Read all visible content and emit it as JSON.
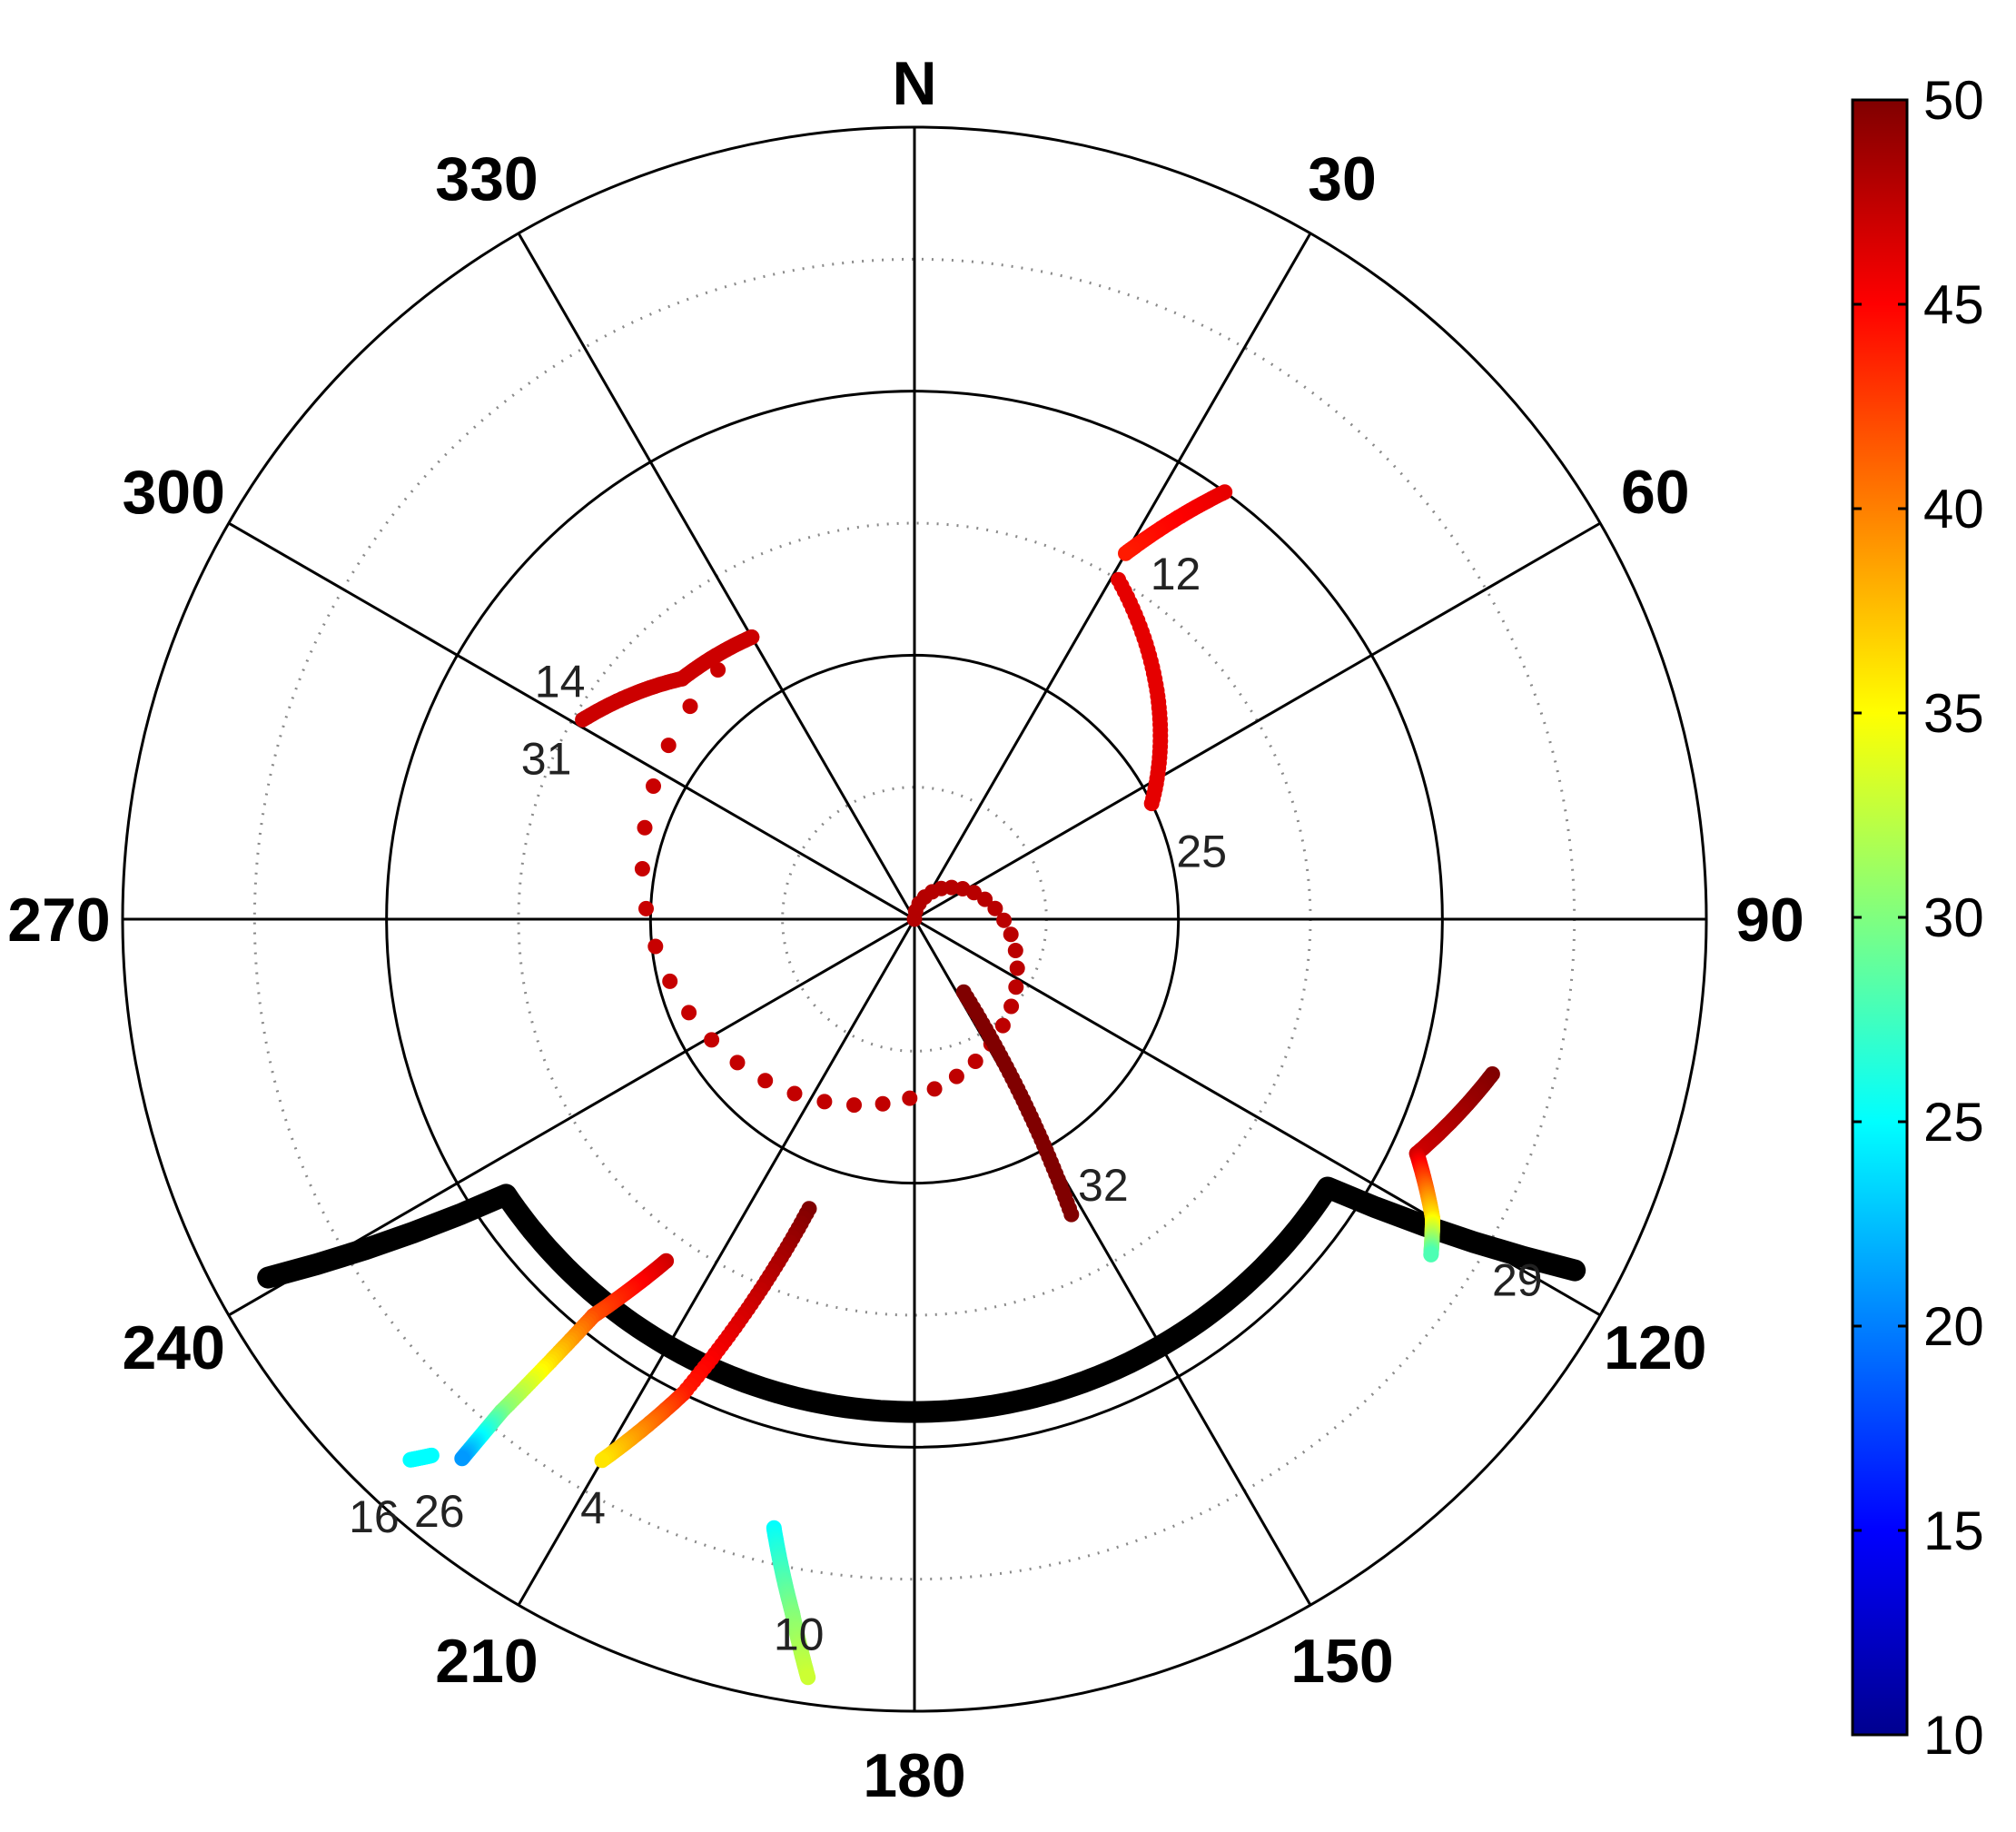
{
  "chart_data": {
    "type": "scatter",
    "subtype": "polar-skyplot",
    "title": "",
    "north_label": "N",
    "angle_labels": [
      "30",
      "60",
      "90",
      "120",
      "150",
      "180",
      "210",
      "240",
      "270",
      "300",
      "330"
    ],
    "angle_ticks_deg": [
      30,
      60,
      90,
      120,
      150,
      180,
      210,
      240,
      270,
      300,
      330
    ],
    "rings_elevation_deg": [
      0,
      30,
      60
    ],
    "dotted_rings_elevation_deg": [
      15,
      45,
      75
    ],
    "elevation_range": [
      0,
      90
    ],
    "direction": "clockwise from north",
    "grid": true,
    "colorbar": {
      "min": 10,
      "max": 50,
      "tick_labels": [
        "10",
        "15",
        "20",
        "25",
        "30",
        "35",
        "40",
        "45",
        "50"
      ],
      "tick_values": [
        10,
        15,
        20,
        25,
        30,
        35,
        40,
        45,
        50
      ],
      "colormap": "jet",
      "placement": "right"
    },
    "mask": {
      "color": "#000000",
      "points": [
        [
          118,
          5
        ],
        [
          123,
          34
        ],
        [
          236,
          34
        ],
        [
          241,
          6
        ]
      ]
    },
    "series": [
      {
        "label": "12",
        "points": [
          [
            36,
            30,
            46
          ],
          [
            30,
            42,
            44
          ]
        ]
      },
      {
        "label": "25",
        "points": [
          [
            31,
            45,
            46
          ],
          [
            64,
            60,
            46
          ]
        ]
      },
      {
        "label": "14",
        "points": [
          [
            0,
            90,
            48
          ],
          [
            330,
            53,
            47
          ],
          [
            316,
            52,
            47
          ],
          [
            301,
            46,
            47
          ]
        ]
      },
      {
        "label": "31",
        "points": [
          [
            301,
            46,
            47
          ]
        ]
      },
      {
        "label": "32",
        "points": [
          [
            146,
            80,
            50
          ],
          [
            152,
            52,
            50
          ]
        ]
      },
      {
        "label": "29",
        "points": [
          [
            105,
            22,
            50
          ],
          [
            115,
            27,
            47
          ],
          [
            120,
            22,
            36
          ],
          [
            123,
            20,
            28
          ]
        ]
      },
      {
        "label": "4",
        "points": [
          [
            200,
            55,
            50
          ],
          [
            206,
            30,
            44
          ],
          [
            210,
            19,
            36
          ]
        ]
      },
      {
        "label": "26",
        "points": [
          [
            216,
            42,
            47
          ],
          [
            219,
            32,
            42
          ],
          [
            220,
            17,
            30
          ],
          [
            220,
            10,
            21
          ]
        ]
      },
      {
        "label": "10",
        "points": [
          [
            193,
            19,
            25
          ],
          [
            190,
            10,
            30
          ],
          [
            188,
            3,
            33
          ]
        ]
      },
      {
        "label": "16",
        "points": [
          [
            222,
            8,
            25
          ],
          [
            223,
            6,
            25
          ]
        ]
      }
    ]
  }
}
